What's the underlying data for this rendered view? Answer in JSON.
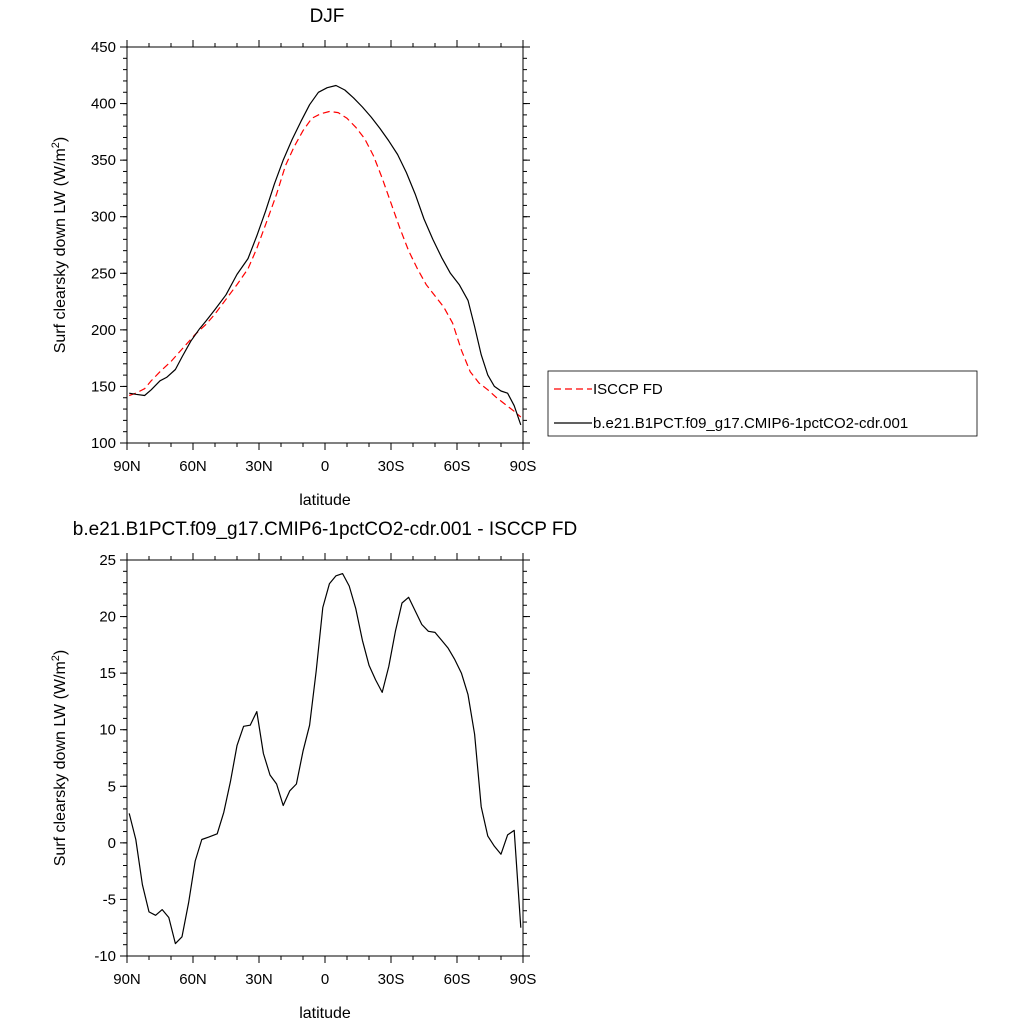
{
  "chart_data": [
    {
      "type": "line",
      "title": "DJF",
      "xlabel": "latitude",
      "ylabel_main": "Surf clearsky down LW (W/m",
      "ylabel_sup": "2",
      "ylabel_close": ")",
      "xlim": [
        90,
        -90
      ],
      "ylim": [
        100,
        450
      ],
      "x_tick_values": [
        90,
        60,
        30,
        0,
        -30,
        -60,
        -90
      ],
      "x_tick_labels": [
        "90N",
        "60N",
        "30N",
        "0",
        "30S",
        "60S",
        "90S"
      ],
      "y_tick_values": [
        100,
        150,
        200,
        250,
        300,
        350,
        400,
        450
      ],
      "y_tick_labels": [
        "100",
        "150",
        "200",
        "250",
        "300",
        "350",
        "400",
        "450"
      ],
      "legend": [
        {
          "label": "ISCCP FD",
          "color": "#ff0000",
          "dash": true
        },
        {
          "label": "b.e21.B1PCT.f09_g17.CMIP6-1pctCO2-cdr.001",
          "color": "#000000",
          "dash": false
        }
      ],
      "series": [
        {
          "name": "ISCCP FD",
          "color": "#ff0000",
          "dash": true,
          "x": [
            89,
            86,
            82,
            79,
            75,
            70,
            65,
            59,
            54,
            50,
            45,
            40,
            35,
            31,
            27,
            22,
            18,
            14,
            10,
            6,
            2,
            -2,
            -6,
            -10,
            -14,
            -18,
            -22,
            -26,
            -30,
            -34,
            -38,
            -42,
            -46,
            -50,
            -54,
            -58,
            -62,
            -66,
            -70,
            -74,
            -78,
            -82,
            -86,
            -89
          ],
          "y": [
            142,
            144,
            148,
            155,
            163,
            172,
            183,
            196,
            205,
            214,
            227,
            240,
            254,
            272,
            293,
            320,
            345,
            362,
            376,
            387,
            391,
            393,
            392,
            387,
            379,
            369,
            354,
            334,
            312,
            290,
            270,
            254,
            240,
            230,
            220,
            206,
            182,
            163,
            153,
            147,
            140,
            134,
            128,
            123
          ]
        },
        {
          "name": "b.e21.B1PCT.f09_g17.CMIP6-1pctCO2-cdr.001",
          "color": "#000000",
          "dash": false,
          "x": [
            89,
            86,
            82,
            79,
            75,
            72,
            68,
            65,
            61,
            57,
            54,
            50,
            45,
            40,
            35,
            31,
            27,
            23,
            19,
            15,
            11,
            7,
            3,
            -1,
            -5,
            -9,
            -13,
            -17,
            -21,
            -25,
            -29,
            -33,
            -37,
            -41,
            -45,
            -49,
            -53,
            -57,
            -61,
            -65,
            -68,
            -71,
            -74,
            -77,
            -80,
            -83,
            -86,
            -89
          ],
          "y": [
            144,
            143,
            142,
            147,
            155,
            158,
            165,
            176,
            190,
            201,
            208,
            218,
            231,
            249,
            263,
            283,
            305,
            329,
            350,
            368,
            384,
            399,
            410,
            414,
            416,
            412,
            405,
            397,
            388,
            378,
            367,
            355,
            339,
            320,
            298,
            280,
            264,
            250,
            240,
            226,
            203,
            178,
            160,
            150,
            146,
            144,
            133,
            116
          ]
        }
      ]
    },
    {
      "type": "line",
      "title": "b.e21.B1PCT.f09_g17.CMIP6-1pctCO2-cdr.001 - ISCCP FD",
      "xlabel": "latitude",
      "ylabel_main": "Surf clearsky down LW (W/m",
      "ylabel_sup": "2",
      "ylabel_close": ")",
      "xlim": [
        90,
        -90
      ],
      "ylim": [
        -10,
        25
      ],
      "x_tick_values": [
        90,
        60,
        30,
        0,
        -30,
        -60,
        -90
      ],
      "x_tick_labels": [
        "90N",
        "60N",
        "30N",
        "0",
        "30S",
        "60S",
        "90S"
      ],
      "y_tick_values": [
        -10,
        -5,
        0,
        5,
        10,
        15,
        20,
        25
      ],
      "y_tick_labels": [
        "-10",
        "-5",
        "0",
        "5",
        "10",
        "15",
        "20",
        "25"
      ],
      "legend": [],
      "series": [
        {
          "name": "b.e21.B1PCT.f09_g17.CMIP6-1pctCO2-cdr.001 - ISCCP FD",
          "color": "#000000",
          "dash": false,
          "x": [
            89,
            86,
            83,
            80,
            77,
            74,
            71,
            68,
            65,
            62,
            59,
            56,
            53,
            49,
            46,
            43,
            40,
            37,
            34,
            31,
            28,
            25,
            22,
            19,
            16,
            13,
            10,
            7,
            4,
            1,
            -2,
            -5,
            -8,
            -11,
            -14,
            -17,
            -20,
            -23,
            -26,
            -29,
            -32,
            -35,
            -38,
            -41,
            -44,
            -47,
            -50,
            -53,
            -56,
            -59,
            -62,
            -65,
            -68,
            -71,
            -74,
            -77,
            -80,
            -83,
            -86,
            -89
          ],
          "y": [
            2.6,
            0.3,
            -3.7,
            -6.1,
            -6.4,
            -5.9,
            -6.6,
            -8.9,
            -8.3,
            -5.3,
            -1.6,
            0.3,
            0.5,
            0.8,
            2.7,
            5.4,
            8.6,
            10.3,
            10.4,
            11.6,
            7.9,
            6.0,
            5.2,
            3.3,
            4.6,
            5.2,
            8.1,
            10.4,
            15.2,
            20.8,
            22.9,
            23.6,
            23.8,
            22.7,
            20.7,
            17.9,
            15.7,
            14.4,
            13.3,
            15.6,
            18.7,
            21.2,
            21.7,
            20.5,
            19.3,
            18.7,
            18.6,
            17.9,
            17.2,
            16.2,
            15.0,
            13.1,
            9.6,
            3.2,
            0.6,
            -0.3,
            -1.0,
            0.7,
            1.1,
            -7.5
          ]
        }
      ]
    }
  ]
}
